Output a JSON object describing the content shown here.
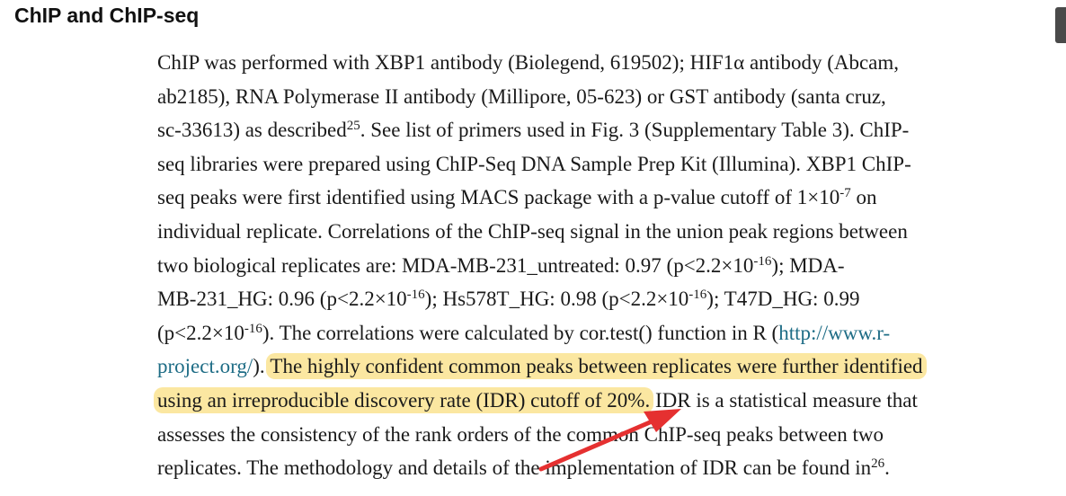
{
  "heading": "ChIP and ChIP-seq",
  "paragraph": {
    "l1": "ChIP was performed with XBP1 antibody (Biolegend, 619502); HIF1α antibody (Abcam,",
    "l2": "ab2185), RNA Polymerase II antibody (Millipore, 05-623) or GST antibody (santa cruz,",
    "l3_a": "sc-33613) as described",
    "l3_sup": "25",
    "l3_b": ". See list of primers used in Fig. 3 (Supplementary Table 3). ChIP-",
    "l4": "seq libraries were prepared using ChIP-Seq DNA Sample Prep Kit (Illumina). XBP1 ChIP-",
    "l5_a": "seq peaks were first identified using MACS package with a p-value cutoff of 1×10",
    "l5_sup": "-7",
    "l5_b": " on",
    "l6": "individual replicate. Correlations of the ChIP-seq signal in the union peak regions between",
    "l7_a": "two biological replicates are: MDA-MB-231_untreated: 0.97 (p<2.2×10",
    "l7_sup": "-16",
    "l7_b": "); MDA-",
    "l8_a": "MB-231_HG: 0.96 (p<2.2×10",
    "l8_sup1": "-16",
    "l8_b": "); Hs578T_HG: 0.98 (p<2.2×10",
    "l8_sup2": "-16",
    "l8_c": "); T47D_HG: 0.99",
    "l9_a": "(p<2.2×10",
    "l9_sup": "-16",
    "l9_b": "). The correlations were calculated by cor.test() function in R (",
    "l9_link": "http://www.r-",
    "l10_link": "project.org/",
    "l10_b": "). ",
    "l10_hl": "The highly confident common peaks between replicates were further identified",
    "l11_hl": "using an irreproducible discovery rate (IDR) cutoff of 20%.",
    "l11_b": " IDR is a statistical measure that",
    "l12": "assesses the consistency of the rank orders of the common ChIP-seq peaks between two",
    "l13_a": "replicates. The methodology and details of the implementation of IDR can be found in",
    "l13_sup": "26",
    "l13_b": "."
  },
  "colors": {
    "highlight": "#fbe7a1",
    "link": "#1f6d86",
    "arrow": "#e53030"
  },
  "icons": {
    "annotation": "red-arrow-icon"
  }
}
